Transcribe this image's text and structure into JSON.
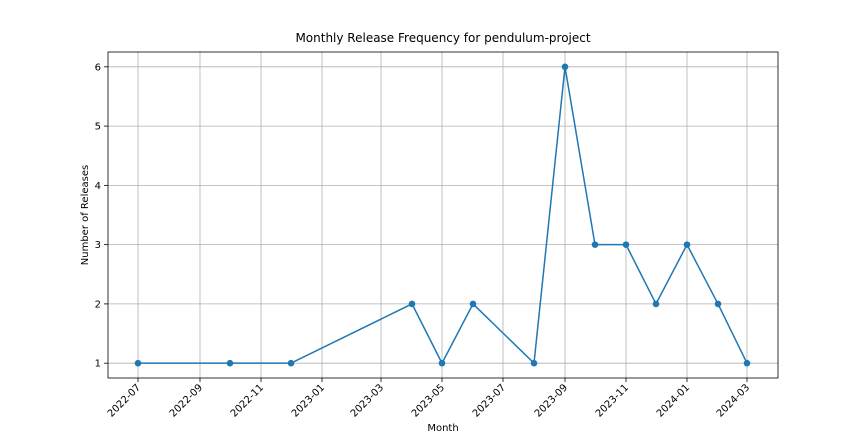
{
  "chart_data": {
    "type": "line",
    "title": "Monthly Release Frequency for pendulum-project",
    "x_label": "Month",
    "y_label": "Number of Releases",
    "x": [
      "2022-07",
      "2022-10",
      "2022-12",
      "2023-04",
      "2023-05",
      "2023-06",
      "2023-08",
      "2023-09",
      "2023-10",
      "2023-11",
      "2023-12",
      "2024-01",
      "2024-02",
      "2024-03"
    ],
    "values": [
      1,
      1,
      1,
      2,
      1,
      2,
      1,
      6,
      3,
      3,
      2,
      3,
      2,
      1
    ],
    "color": "#1f77b4",
    "xlim": [
      "2022-06",
      "2024-04"
    ],
    "xticks": [
      "2022-07",
      "2022-09",
      "2022-11",
      "2023-01",
      "2023-03",
      "2023-05",
      "2023-07",
      "2023-09",
      "2023-11",
      "2024-01",
      "2024-03"
    ],
    "ylim": [
      0.75,
      6.25
    ],
    "yticks": [
      1,
      2,
      3,
      4,
      5,
      6
    ],
    "grid": true
  }
}
